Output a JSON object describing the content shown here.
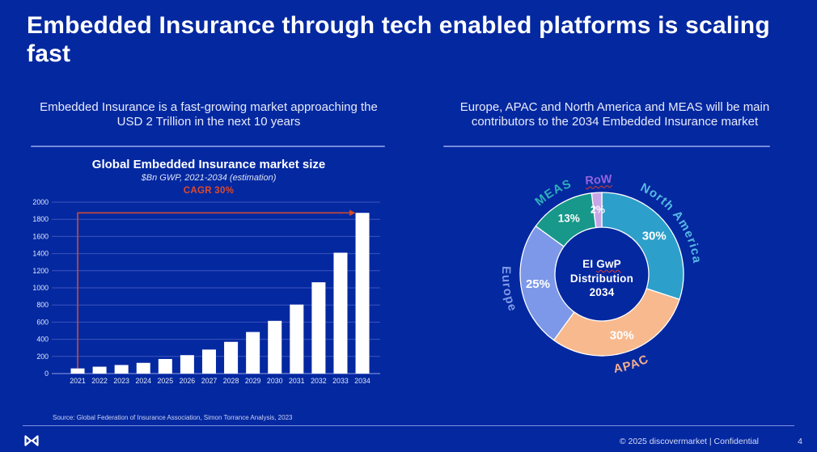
{
  "slide": {
    "title": "Embedded Insurance through tech enabled platforms is scaling fast",
    "source_note": "Source: Global Federation of Insurance Association, Simon Torrance Analysis, 2023",
    "footer_text": "© 2025 discovermarket | Confidential",
    "page_number": "4"
  },
  "left_panel": {
    "subtitle": "Embedded Insurance is a fast-growing market approaching the USD 2 Trillion in the next 10 years"
  },
  "right_panel": {
    "subtitle": "Europe, APAC and North America and MEAS will be main contributors to the 2034 Embedded Insurance market"
  },
  "colors": {
    "background": "#0428A0",
    "title_text": "#FFFFFF",
    "body_text": "#E8EBFA",
    "divider": "#8C9CE8",
    "accent_orange": "#DE4A2B",
    "bar_fill": "#FFFFFF",
    "gridline": "#3B54BD",
    "axis_line": "#8EA0E2",
    "spellcheck_red": "#E03A2F"
  },
  "chart_data": [
    {
      "type": "bar",
      "title": "Global Embedded Insurance market size",
      "subtitle": "$Bn GWP, 2021-2034 (estimation)",
      "annotation": "CAGR 30%",
      "categories": [
        "2021",
        "2022",
        "2023",
        "2024",
        "2025",
        "2026",
        "2027",
        "2028",
        "2029",
        "2030",
        "2031",
        "2032",
        "2033",
        "2034"
      ],
      "values": [
        60,
        80,
        100,
        125,
        170,
        215,
        280,
        370,
        485,
        615,
        805,
        1065,
        1410,
        1875
      ],
      "xlabel": "",
      "ylabel": "",
      "ylim": [
        0,
        2000
      ],
      "ytick_step": 200,
      "grid": true,
      "legend": "none",
      "bar_color": "#FFFFFF",
      "arrow_color": "#D24C2C"
    },
    {
      "type": "pie",
      "title": "EI GwP Distribution 2034",
      "donut": true,
      "center_label": {
        "l1a": "EI",
        "l1b": "GwP",
        "l2": "Distribution",
        "l3": "2034"
      },
      "slices": [
        {
          "label": "North America",
          "value": 30,
          "color": "#2D9FCB",
          "label_color": "#55B9E2"
        },
        {
          "label": "APAC",
          "value": 30,
          "color": "#F8B98E",
          "label_color": "#F4AF90"
        },
        {
          "label": "Europe",
          "value": 25,
          "color": "#7D98E8",
          "label_color": "#7E99E8"
        },
        {
          "label": "MEAS",
          "value": 13,
          "color": "#17988A",
          "label_color": "#2EB0B9"
        },
        {
          "label": "RoW",
          "value": 2,
          "color": "#C8A5E6",
          "label_color": "#9464DC",
          "external_label": true
        }
      ],
      "legend": "labels-around-ring"
    }
  ]
}
